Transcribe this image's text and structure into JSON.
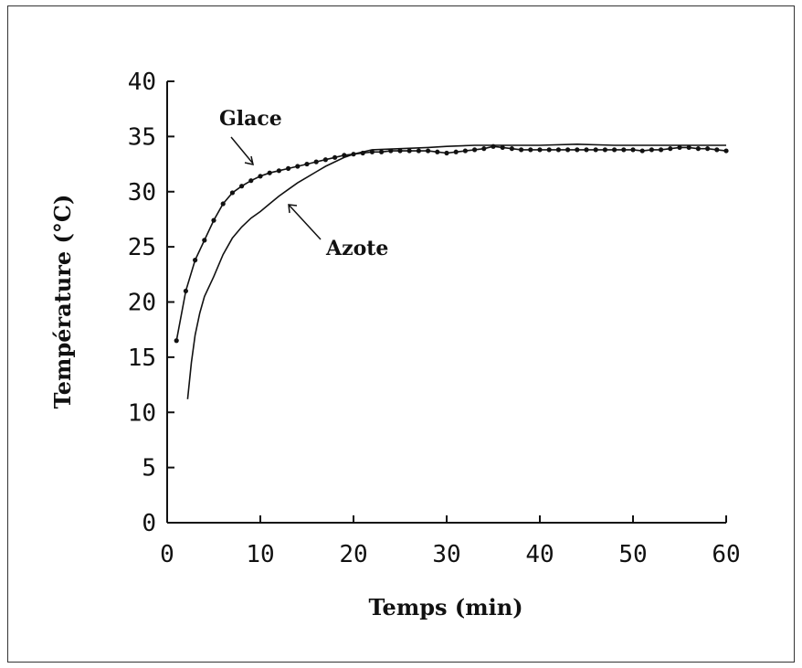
{
  "chart_data": {
    "type": "line",
    "xlabel": "Temps (min)",
    "ylabel": "Température (°C)",
    "xlim": [
      0,
      60
    ],
    "ylim": [
      0,
      40
    ],
    "xticks": [
      0,
      10,
      20,
      30,
      40,
      50,
      60
    ],
    "yticks": [
      0,
      5,
      10,
      15,
      20,
      25,
      30,
      35,
      40
    ],
    "grid": false,
    "series": [
      {
        "name": "Glace",
        "marker": "dot",
        "x": [
          1,
          2,
          3,
          4,
          5,
          6,
          7,
          8,
          9,
          10,
          11,
          12,
          13,
          14,
          15,
          16,
          17,
          18,
          19,
          20,
          21,
          22,
          23,
          24,
          25,
          26,
          27,
          28,
          29,
          30,
          31,
          32,
          33,
          34,
          35,
          36,
          37,
          38,
          39,
          40,
          41,
          42,
          43,
          44,
          45,
          46,
          47,
          48,
          49,
          50,
          51,
          52,
          53,
          54,
          55,
          56,
          57,
          58,
          59,
          60
        ],
        "values": [
          16.5,
          21.0,
          23.8,
          25.6,
          27.4,
          28.9,
          29.9,
          30.5,
          31.0,
          31.4,
          31.7,
          31.9,
          32.1,
          32.3,
          32.5,
          32.7,
          32.9,
          33.1,
          33.3,
          33.4,
          33.5,
          33.6,
          33.6,
          33.7,
          33.7,
          33.7,
          33.7,
          33.7,
          33.6,
          33.5,
          33.6,
          33.7,
          33.8,
          33.9,
          34.1,
          34.0,
          33.9,
          33.8,
          33.8,
          33.8,
          33.8,
          33.8,
          33.8,
          33.8,
          33.8,
          33.8,
          33.8,
          33.8,
          33.8,
          33.8,
          33.7,
          33.8,
          33.8,
          33.9,
          34.0,
          34.0,
          33.9,
          33.9,
          33.8,
          33.7
        ]
      },
      {
        "name": "Azote",
        "marker": "none",
        "x": [
          2.2,
          2.6,
          3.0,
          3.5,
          4.0,
          5.0,
          6.0,
          7.0,
          8.0,
          9.0,
          10.0,
          11.0,
          12.0,
          13.0,
          14.0,
          15.0,
          16.0,
          17.0,
          18.0,
          19.0,
          20.0,
          21.0,
          22.0,
          25.0,
          28.0,
          30.0,
          33.0,
          36.0,
          40.0,
          44.0,
          48.0,
          52.0,
          56.0,
          60.0
        ],
        "values": [
          11.2,
          14.5,
          17.0,
          19.0,
          20.5,
          22.3,
          24.3,
          25.8,
          26.8,
          27.6,
          28.2,
          28.9,
          29.6,
          30.2,
          30.8,
          31.3,
          31.8,
          32.3,
          32.7,
          33.1,
          33.4,
          33.6,
          33.8,
          33.9,
          34.0,
          34.1,
          34.2,
          34.2,
          34.2,
          34.3,
          34.2,
          34.2,
          34.2,
          34.2
        ]
      }
    ],
    "annotations": [
      {
        "text": "Glace",
        "series": "Glace"
      },
      {
        "text": "Azote",
        "series": "Azote"
      }
    ]
  }
}
